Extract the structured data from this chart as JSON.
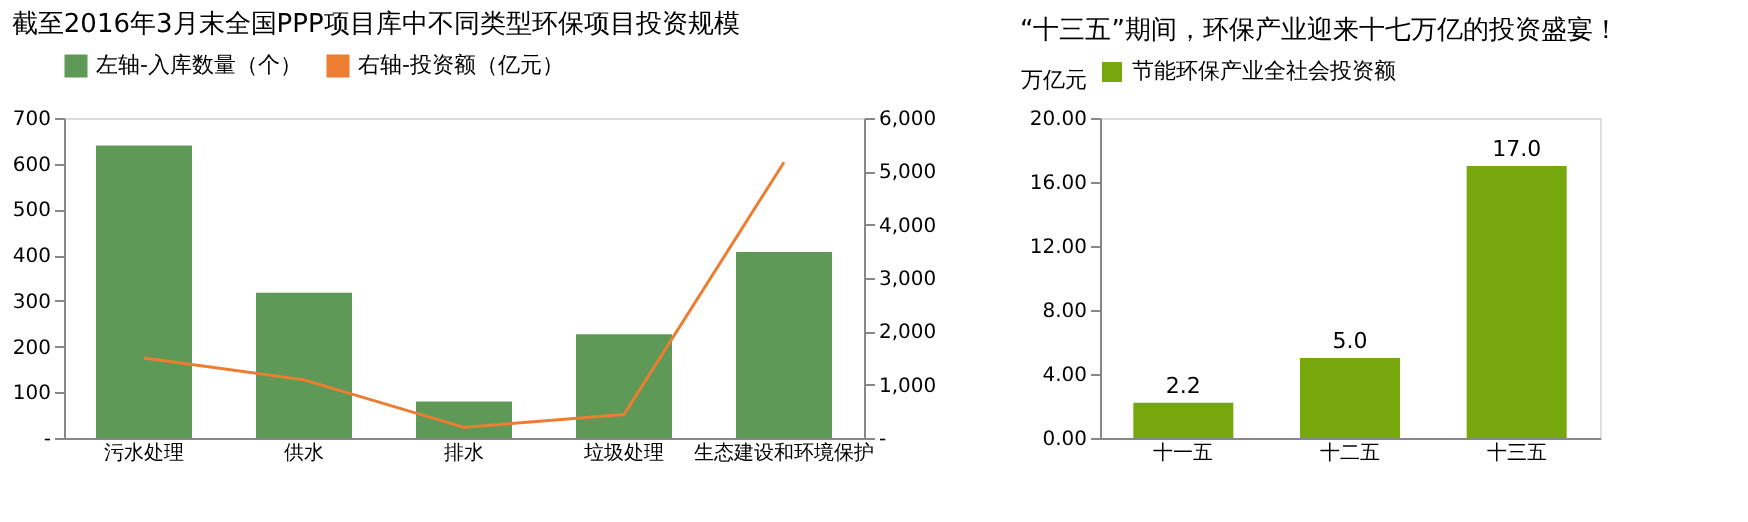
{
  "chart_data": [
    {
      "type": "bar",
      "title": "截至2016年3月末全国PPP项目库中不同类型环保项目投资规模",
      "categories": [
        "污水处理",
        "供水",
        "排水",
        "垃圾处理",
        "生态建设和环境保护"
      ],
      "series": [
        {
          "name": "左轴-入库数量（个）",
          "color": "#5f9957",
          "values": [
            640,
            318,
            80,
            227,
            407
          ]
        },
        {
          "name": "右轴-投资额（亿元）",
          "type": "line",
          "axis": "y2",
          "color": "#ed7d31",
          "values": [
            1500,
            1090,
            200,
            440,
            5170
          ]
        }
      ],
      "ylim": [
        0,
        700
      ],
      "yticks": [
        {
          "value": 0,
          "label": "-"
        },
        100,
        200,
        300,
        400,
        500,
        600,
        700
      ],
      "y2lim": [
        0,
        6000
      ],
      "y2ticks": [
        {
          "value": 0,
          "label": "-"
        },
        {
          "value": 1000,
          "label": "1,000"
        },
        {
          "value": 2000,
          "label": "2,000"
        },
        {
          "value": 3000,
          "label": "3,000"
        },
        {
          "value": 4000,
          "label": "4,000"
        },
        {
          "value": 5000,
          "label": "5,000"
        },
        {
          "value": 6000,
          "label": "6,000"
        }
      ],
      "legend": "top",
      "grid": false
    },
    {
      "type": "bar",
      "title": "“十三五”期间，环保产业迎来十七万亿的投资盛宴！",
      "ylabel": "万亿元",
      "categories": [
        "十一五",
        "十二五",
        "十三五"
      ],
      "series": [
        {
          "name": "节能环保产业全社会投资额",
          "color": "#76a80e",
          "values": [
            2.2,
            5.0,
            17.0
          ],
          "value_labels": [
            "2.2",
            "5.0",
            "17.0"
          ]
        }
      ],
      "ylim": [
        0,
        20
      ],
      "yticks": [
        {
          "value": 0,
          "label": "0.00"
        },
        {
          "value": 4,
          "label": "4.00"
        },
        {
          "value": 8,
          "label": "8.00"
        },
        {
          "value": 12,
          "label": "12.00"
        },
        {
          "value": 16,
          "label": "16.00"
        },
        {
          "value": 20,
          "label": "20.00"
        }
      ],
      "legend": "top",
      "grid": false
    }
  ]
}
